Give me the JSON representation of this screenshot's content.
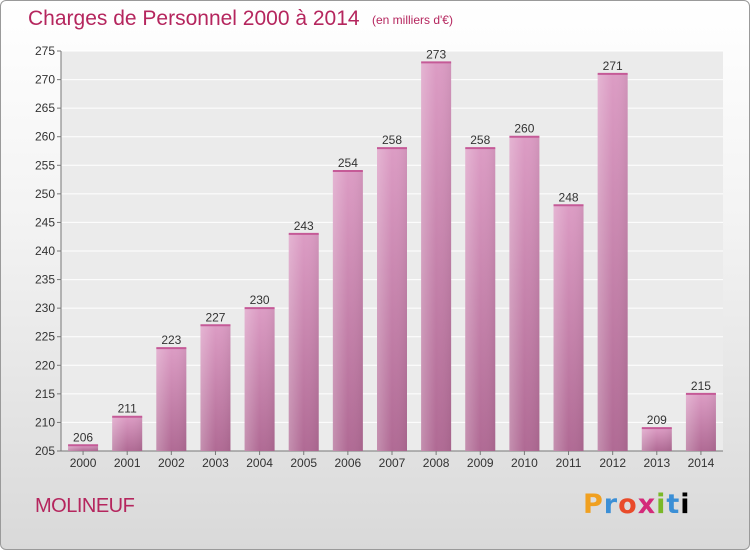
{
  "header": {
    "title": "Charges de Personnel 2000 à 2014",
    "subtitle": "(en milliers d'€)"
  },
  "footer": {
    "commune": "MOLINEUF",
    "logo_letters": [
      "P",
      "r",
      "o",
      "x",
      "i",
      "t",
      "i"
    ]
  },
  "chart_data": {
    "type": "bar",
    "title": "Charges de Personnel 2000 à 2014",
    "subtitle": "(en milliers d'€)",
    "categories": [
      "2000",
      "2001",
      "2002",
      "2003",
      "2004",
      "2005",
      "2006",
      "2007",
      "2008",
      "2009",
      "2010",
      "2011",
      "2012",
      "2013",
      "2014"
    ],
    "values": [
      206,
      211,
      223,
      227,
      230,
      243,
      254,
      258,
      273,
      258,
      260,
      248,
      271,
      209,
      215
    ],
    "ylim": [
      205,
      275
    ],
    "yticks": [
      205,
      210,
      215,
      220,
      225,
      230,
      235,
      240,
      245,
      250,
      255,
      260,
      265,
      270,
      275
    ],
    "grid": true,
    "bar_color": "#dc9cc4",
    "bar_color_dark": "#b06a94",
    "text_color": "#b5265e"
  }
}
